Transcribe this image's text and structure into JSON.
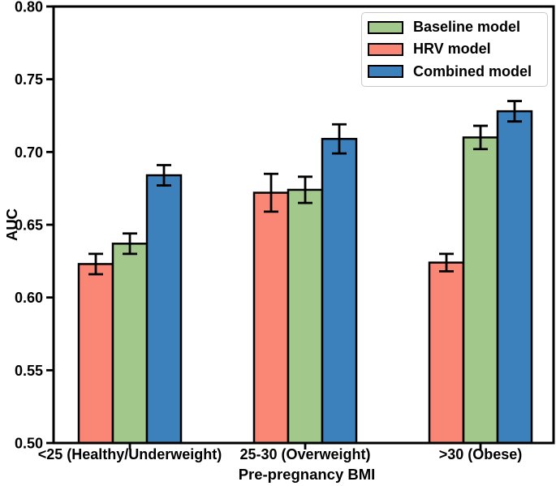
{
  "chart_data": {
    "type": "bar",
    "title": "",
    "xlabel": "Pre-pregnancy BMI",
    "ylabel": "AUC",
    "ylim": [
      0.5,
      0.8
    ],
    "yticks": [
      0.5,
      0.55,
      0.6,
      0.65,
      0.7,
      0.75,
      0.8
    ],
    "ytick_labels": [
      "0.50",
      "0.55",
      "0.60",
      "0.65",
      "0.70",
      "0.75",
      "0.80"
    ],
    "categories": [
      "<25 (Healthy/Underweight)",
      "25-30 (Overweight)",
      ">30 (Obese)"
    ],
    "series": [
      {
        "name": "Baseline model",
        "color": "#A2C98B",
        "values": [
          0.637,
          0.674,
          0.71
        ],
        "errors": [
          0.007,
          0.009,
          0.008
        ]
      },
      {
        "name": "HRV model",
        "color": "#FA8775",
        "values": [
          0.623,
          0.672,
          0.624
        ],
        "errors": [
          0.007,
          0.013,
          0.006
        ]
      },
      {
        "name": "Combined model",
        "color": "#3D81BC",
        "values": [
          0.684,
          0.709,
          0.728
        ],
        "errors": [
          0.007,
          0.01,
          0.007
        ]
      }
    ],
    "bar_order": [
      "HRV model",
      "Baseline model",
      "Combined model"
    ],
    "legend": {
      "position": "upper right",
      "entries": [
        "Baseline model",
        "HRV model",
        "Combined model"
      ]
    },
    "grid": false,
    "bar_edge_color": "#000000",
    "error_bar_color": "#000000",
    "axis_color": "#000000",
    "background": "#FFFFFF"
  }
}
